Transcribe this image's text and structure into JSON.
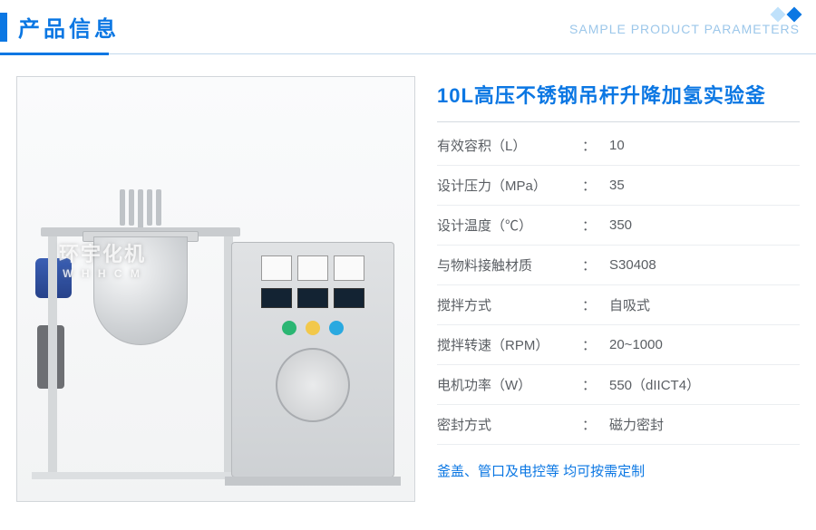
{
  "header": {
    "title": "产品信息",
    "subtitle": "SAMPLE PRODUCT PARAMETERS",
    "accent_color": "#0b77e3",
    "diamond_colors": [
      "#bfe1fb",
      "#0b77e3"
    ]
  },
  "product": {
    "title": "10L高压不锈钢吊杆升降加氢实验釜",
    "specs": [
      {
        "label": "有效容积（L）",
        "value": "10"
      },
      {
        "label": "设计压力（MPa）",
        "value": "35"
      },
      {
        "label": "设计温度（℃）",
        "value": "350"
      },
      {
        "label": "与物料接触材质",
        "value": "S30408"
      },
      {
        "label": "搅拌方式",
        "value": "自吸式"
      },
      {
        "label": "搅拌转速（RPM）",
        "value": "20~1000"
      },
      {
        "label": "电机功率（W）",
        "value": "550（dIICT4）"
      },
      {
        "label": "密封方式",
        "value": "磁力密封"
      }
    ],
    "footnote": "釜盖、管口及电控等 均可按需定制"
  },
  "colors": {
    "title_text": "#0b77e3",
    "body_text": "#5a5e63",
    "divider": "#ebeef1",
    "border": "#d5dbe0",
    "header_line": "#c2d9ec"
  },
  "image": {
    "watermark_line1": "环宇化机",
    "watermark_line2": "W H H C M",
    "cabinet_buttons": [
      "#2bb673",
      "#f2c84b",
      "#2aa9e0"
    ]
  }
}
